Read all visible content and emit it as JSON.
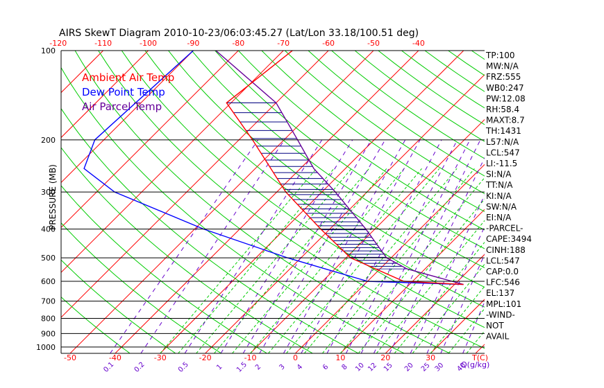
{
  "colors": {
    "background": "#ffffff",
    "axis": "#000000",
    "isotherm": "#ff0000",
    "dry_adiabat": "#00cc00",
    "moist_adiabat": "#00cc00",
    "mixing_ratio": "#6600cc",
    "ambient": "#ff0000",
    "dewpoint": "#0000ff",
    "parcel": "#660099",
    "hatch": "#000080"
  },
  "chart_data": {
    "type": "line",
    "title": "AIRS SkewT Diagram 2010-10-23/06:03:45.27 (Lat/Lon 33.18/100.51 deg)",
    "ylabel": "PRESSURE (MB)",
    "xlabel_bottom": "T(C)",
    "xlabel_mixing": "Q(g/kg)",
    "pressure_range_mb": [
      100,
      1050
    ],
    "temp_range_c_at_1050mb": [
      -52,
      42
    ],
    "pressure_ticks": [
      100,
      200,
      300,
      400,
      500,
      600,
      700,
      800,
      900,
      1000
    ],
    "bottom_temp_ticks": [
      -50,
      -40,
      -30,
      -20,
      -10,
      0,
      10,
      20,
      30
    ],
    "top_temp_ticks": [
      -120,
      -110,
      -100,
      -90,
      -80,
      -70,
      -60,
      -50,
      -40
    ],
    "mixing_ratio_labels": [
      "0.1",
      "0.2",
      "0.5",
      "1",
      "1.5",
      "2",
      "3",
      "4",
      "6",
      "8",
      "10",
      "12",
      "15",
      "20",
      "25",
      "30",
      "40"
    ],
    "mixing_ratio_values": [
      0.1,
      0.2,
      0.5,
      1,
      1.5,
      2,
      3,
      4,
      6,
      8,
      10,
      12,
      15,
      20,
      25,
      30,
      40
    ],
    "legend": [
      "Ambient Air Temp",
      "Dew Point Temp",
      "Air Parcel Temp"
    ],
    "series": [
      {
        "name": "Ambient Air Temp",
        "points": [
          {
            "p": 100,
            "t": -68
          },
          {
            "p": 150,
            "t": -71
          },
          {
            "p": 200,
            "t": -57
          },
          {
            "p": 300,
            "t": -38
          },
          {
            "p": 400,
            "t": -22
          },
          {
            "p": 500,
            "t": -9
          },
          {
            "p": 600,
            "t": 8
          },
          {
            "p": 615,
            "t": 22
          }
        ]
      },
      {
        "name": "Dew Point Temp",
        "points": [
          {
            "p": 100,
            "t": -90
          },
          {
            "p": 200,
            "t": -92
          },
          {
            "p": 250,
            "t": -88
          },
          {
            "p": 300,
            "t": -76
          },
          {
            "p": 400,
            "t": -48
          },
          {
            "p": 500,
            "t": -23
          },
          {
            "p": 600,
            "t": 0
          },
          {
            "p": 615,
            "t": 22
          }
        ]
      },
      {
        "name": "Air Parcel Temp",
        "points": [
          {
            "p": 100,
            "t": -85
          },
          {
            "p": 150,
            "t": -60
          },
          {
            "p": 200,
            "t": -47
          },
          {
            "p": 250,
            "t": -37
          },
          {
            "p": 300,
            "t": -27
          },
          {
            "p": 400,
            "t": -12
          },
          {
            "p": 500,
            "t": -1
          },
          {
            "p": 545,
            "t": 6
          },
          {
            "p": 615,
            "t": 22
          }
        ]
      }
    ],
    "stats": [
      "TP:100",
      "MW:N/A",
      "FRZ:555",
      "WB0:247",
      "PW:12.08",
      "RH:58.4",
      "MAXT:8.7",
      "TH:1431",
      "L57:N/A",
      "LCL:547",
      "LI:-11.5",
      "SI:N/A",
      "TT:N/A",
      "KI:N/A",
      "SW:N/A",
      "EI:N/A",
      "-PARCEL-",
      "CAPE:3494",
      "CINH:188",
      "LCL:547",
      "CAP:0.0",
      "LFC:546",
      "EL:137",
      "MPL:101",
      "-WIND-",
      "NOT",
      "AVAIL"
    ]
  }
}
